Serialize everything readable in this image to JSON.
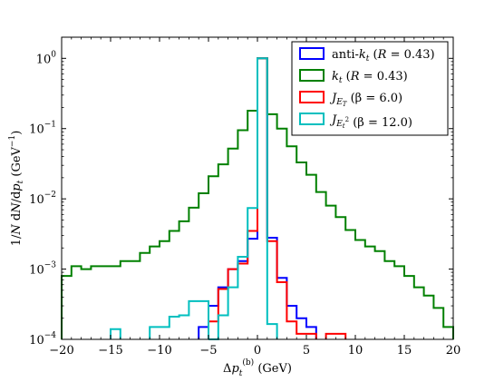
{
  "chart_data": {
    "type": "line",
    "drawstyle": "steps",
    "xlabel": "Δp_t^(b) (GeV)",
    "xlabel_parts": {
      "delta": "Δ",
      "p": "p",
      "sub": "t",
      "sup": "(b)",
      "unit": " (GeV)"
    },
    "ylabel": "1/N dN/dp_t (GeV^-1)",
    "ylabel_parts": {
      "prefix": "1/",
      "N1": "N",
      "d1": " d",
      "N2": "N",
      "slash": "/",
      "d2": "d",
      "p": "p",
      "sub": "t",
      "unit": " (GeV",
      "exp": "−1",
      "close": ")"
    },
    "xlim": [
      -20,
      20
    ],
    "ylim": [
      0.0001,
      2
    ],
    "yscale": "log",
    "grid": false,
    "xticks": [
      -20,
      -15,
      -10,
      -5,
      0,
      5,
      10,
      15,
      20
    ],
    "xtick_labels": [
      "−20",
      "−15",
      "−10",
      "−5",
      "0",
      "5",
      "10",
      "15",
      "20"
    ],
    "yticks": [
      {
        "value": 0.0001,
        "base": "10",
        "exp": "−4"
      },
      {
        "value": 0.001,
        "base": "10",
        "exp": "−3"
      },
      {
        "value": 0.01,
        "base": "10",
        "exp": "−2"
      },
      {
        "value": 0.1,
        "base": "10",
        "exp": "−1"
      },
      {
        "value": 1,
        "base": "10",
        "exp": "0"
      }
    ],
    "bin_edges": [
      -20,
      -19,
      -18,
      -17,
      -16,
      -15,
      -14,
      -13,
      -12,
      -11,
      -10,
      -9,
      -8,
      -7,
      -6,
      -5,
      -4,
      -3,
      -2,
      -1,
      0,
      1,
      2,
      3,
      4,
      5,
      6,
      7,
      8,
      9,
      10,
      11,
      12,
      13,
      14,
      15,
      16,
      17,
      18,
      19,
      20
    ],
    "legend_position": "upper right",
    "series": [
      {
        "name": "anti-kt (R = 0.43)",
        "label_parts": {
          "a": "anti-",
          "k": "k",
          "sub": "t",
          "b": " (",
          "R": "R",
          "c": " = 0.43)"
        },
        "color": "#0000ff",
        "values": [
          null,
          null,
          null,
          null,
          null,
          null,
          null,
          null,
          null,
          null,
          null,
          null,
          null,
          null,
          0.00015,
          0.0003,
          0.00055,
          0.001,
          0.0013,
          0.0027,
          1.0,
          0.0028,
          0.00075,
          0.0003,
          0.0002,
          0.00015,
          null,
          null,
          null,
          null,
          null,
          null,
          null,
          null,
          null,
          null,
          null,
          null,
          null,
          null
        ]
      },
      {
        "name": "kt (R = 0.43)",
        "label_parts": {
          "k": "k",
          "sub": "t",
          "b": " (",
          "R": "R",
          "c": " = 0.43)"
        },
        "color": "#008000",
        "values": [
          0.0008,
          0.0011,
          0.001,
          0.0011,
          0.0011,
          0.0011,
          0.0013,
          0.0013,
          0.0017,
          0.0021,
          0.0025,
          0.0035,
          0.0048,
          0.0075,
          0.012,
          0.021,
          0.031,
          0.052,
          0.095,
          0.18,
          1.0,
          0.16,
          0.1,
          0.056,
          0.033,
          0.022,
          0.0125,
          0.008,
          0.0055,
          0.0036,
          0.0026,
          0.0021,
          0.0018,
          0.0013,
          0.0011,
          0.0008,
          0.00055,
          0.00042,
          0.00028,
          0.00015
        ]
      },
      {
        "name": "J_ET (β = 6.0)",
        "label_parts": {
          "J": "J",
          "sub": "E",
          "subsub": "T",
          "b": " (β = 6.0)"
        },
        "color": "#ff0000",
        "values": [
          null,
          null,
          null,
          null,
          null,
          null,
          null,
          null,
          null,
          null,
          null,
          null,
          null,
          null,
          null,
          0.00018,
          0.00052,
          0.001,
          0.0012,
          0.0035,
          1.0,
          0.0025,
          0.00065,
          0.00018,
          0.00012,
          0.00012,
          null,
          0.00012,
          0.00012,
          null,
          null,
          null,
          null,
          null,
          null,
          null,
          null,
          null,
          null,
          null
        ]
      },
      {
        "name": "J_Et^2 (β = 12.0)",
        "label_parts": {
          "J": "J",
          "sub": "E",
          "subsub": "t",
          "subsup": "2",
          "b": " (β = 12.0)"
        },
        "color": "#00bfbf",
        "values": [
          null,
          null,
          null,
          null,
          null,
          null,
          null,
          null,
          null,
          null,
          null,
          null,
          null,
          null,
          null,
          0.0001,
          0.00022,
          0.00055,
          0.0015,
          0.0074,
          1.0,
          0.000165,
          null,
          null,
          null,
          null,
          null,
          null,
          null,
          null,
          null,
          null,
          null,
          null,
          null,
          null,
          null,
          null,
          null,
          null
        ]
      },
      {
        "name": "J_Et^2 (β = 12.0) side",
        "color": "#00bfbf",
        "values": [
          null,
          null,
          null,
          null,
          null,
          0.00014,
          null,
          null,
          null,
          0.00015,
          0.00015,
          0.00021,
          0.00022,
          0.00035,
          0.00035,
          null,
          null,
          null,
          null,
          null,
          null,
          null,
          null,
          null,
          null,
          null,
          null,
          null,
          null,
          null,
          null,
          null,
          null,
          null,
          null,
          null,
          null,
          null,
          null,
          null
        ]
      }
    ]
  }
}
